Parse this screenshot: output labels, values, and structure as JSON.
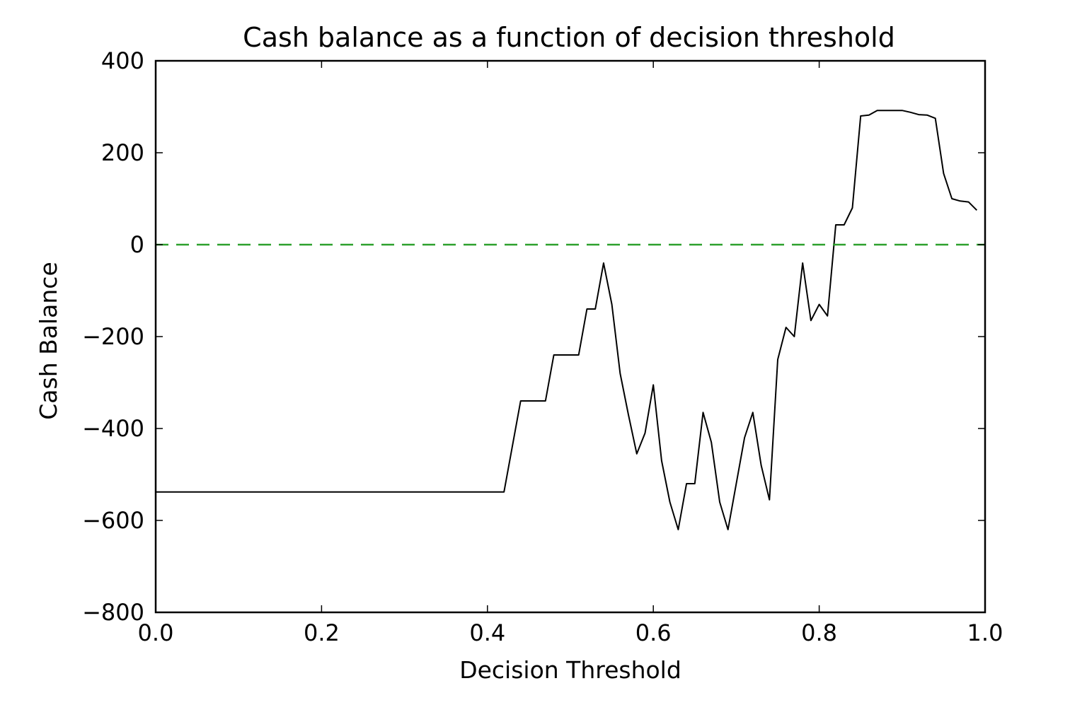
{
  "chart_data": {
    "type": "line",
    "title": "Cash balance as a function of decision threshold",
    "xlabel": "Decision Threshold",
    "ylabel": "Cash Balance",
    "xlim": [
      0.0,
      1.0
    ],
    "ylim": [
      -800,
      400
    ],
    "x_ticks": [
      "0.0",
      "0.2",
      "0.4",
      "0.6",
      "0.8",
      "1.0"
    ],
    "y_ticks": [
      "400",
      "200",
      "0",
      "−200",
      "−400",
      "−600",
      "−800"
    ],
    "grid": false,
    "series": [
      {
        "color": "#000000",
        "style": "solid",
        "x": [
          0.0,
          0.42,
          0.44,
          0.45,
          0.47,
          0.48,
          0.49,
          0.51,
          0.52,
          0.53,
          0.54,
          0.55,
          0.56,
          0.57,
          0.58,
          0.59,
          0.6,
          0.61,
          0.62,
          0.63,
          0.64,
          0.65,
          0.66,
          0.67,
          0.68,
          0.69,
          0.7,
          0.71,
          0.72,
          0.73,
          0.74,
          0.75,
          0.76,
          0.77,
          0.78,
          0.79,
          0.8,
          0.81,
          0.82,
          0.83,
          0.84,
          0.85,
          0.86,
          0.87,
          0.88,
          0.89,
          0.9,
          0.91,
          0.92,
          0.93,
          0.94,
          0.95,
          0.96,
          0.97,
          0.98,
          0.99
        ],
        "values": [
          -538,
          -538,
          -340,
          -340,
          -340,
          -240,
          -240,
          -240,
          -140,
          -140,
          -40,
          -130,
          -280,
          -370,
          -455,
          -410,
          -305,
          -470,
          -560,
          -620,
          -520,
          -520,
          -365,
          -430,
          -560,
          -620,
          -520,
          -420,
          -365,
          -480,
          -555,
          -250,
          -180,
          -200,
          -40,
          -165,
          -130,
          -155,
          43,
          43,
          80,
          280,
          282,
          292,
          292,
          292,
          292,
          288,
          283,
          282,
          275,
          155,
          100,
          95,
          93,
          75
        ]
      },
      {
        "color": "#2ca02c",
        "style": "dashed",
        "x": [
          0.0,
          1.0
        ],
        "values": [
          0,
          0
        ]
      }
    ]
  }
}
